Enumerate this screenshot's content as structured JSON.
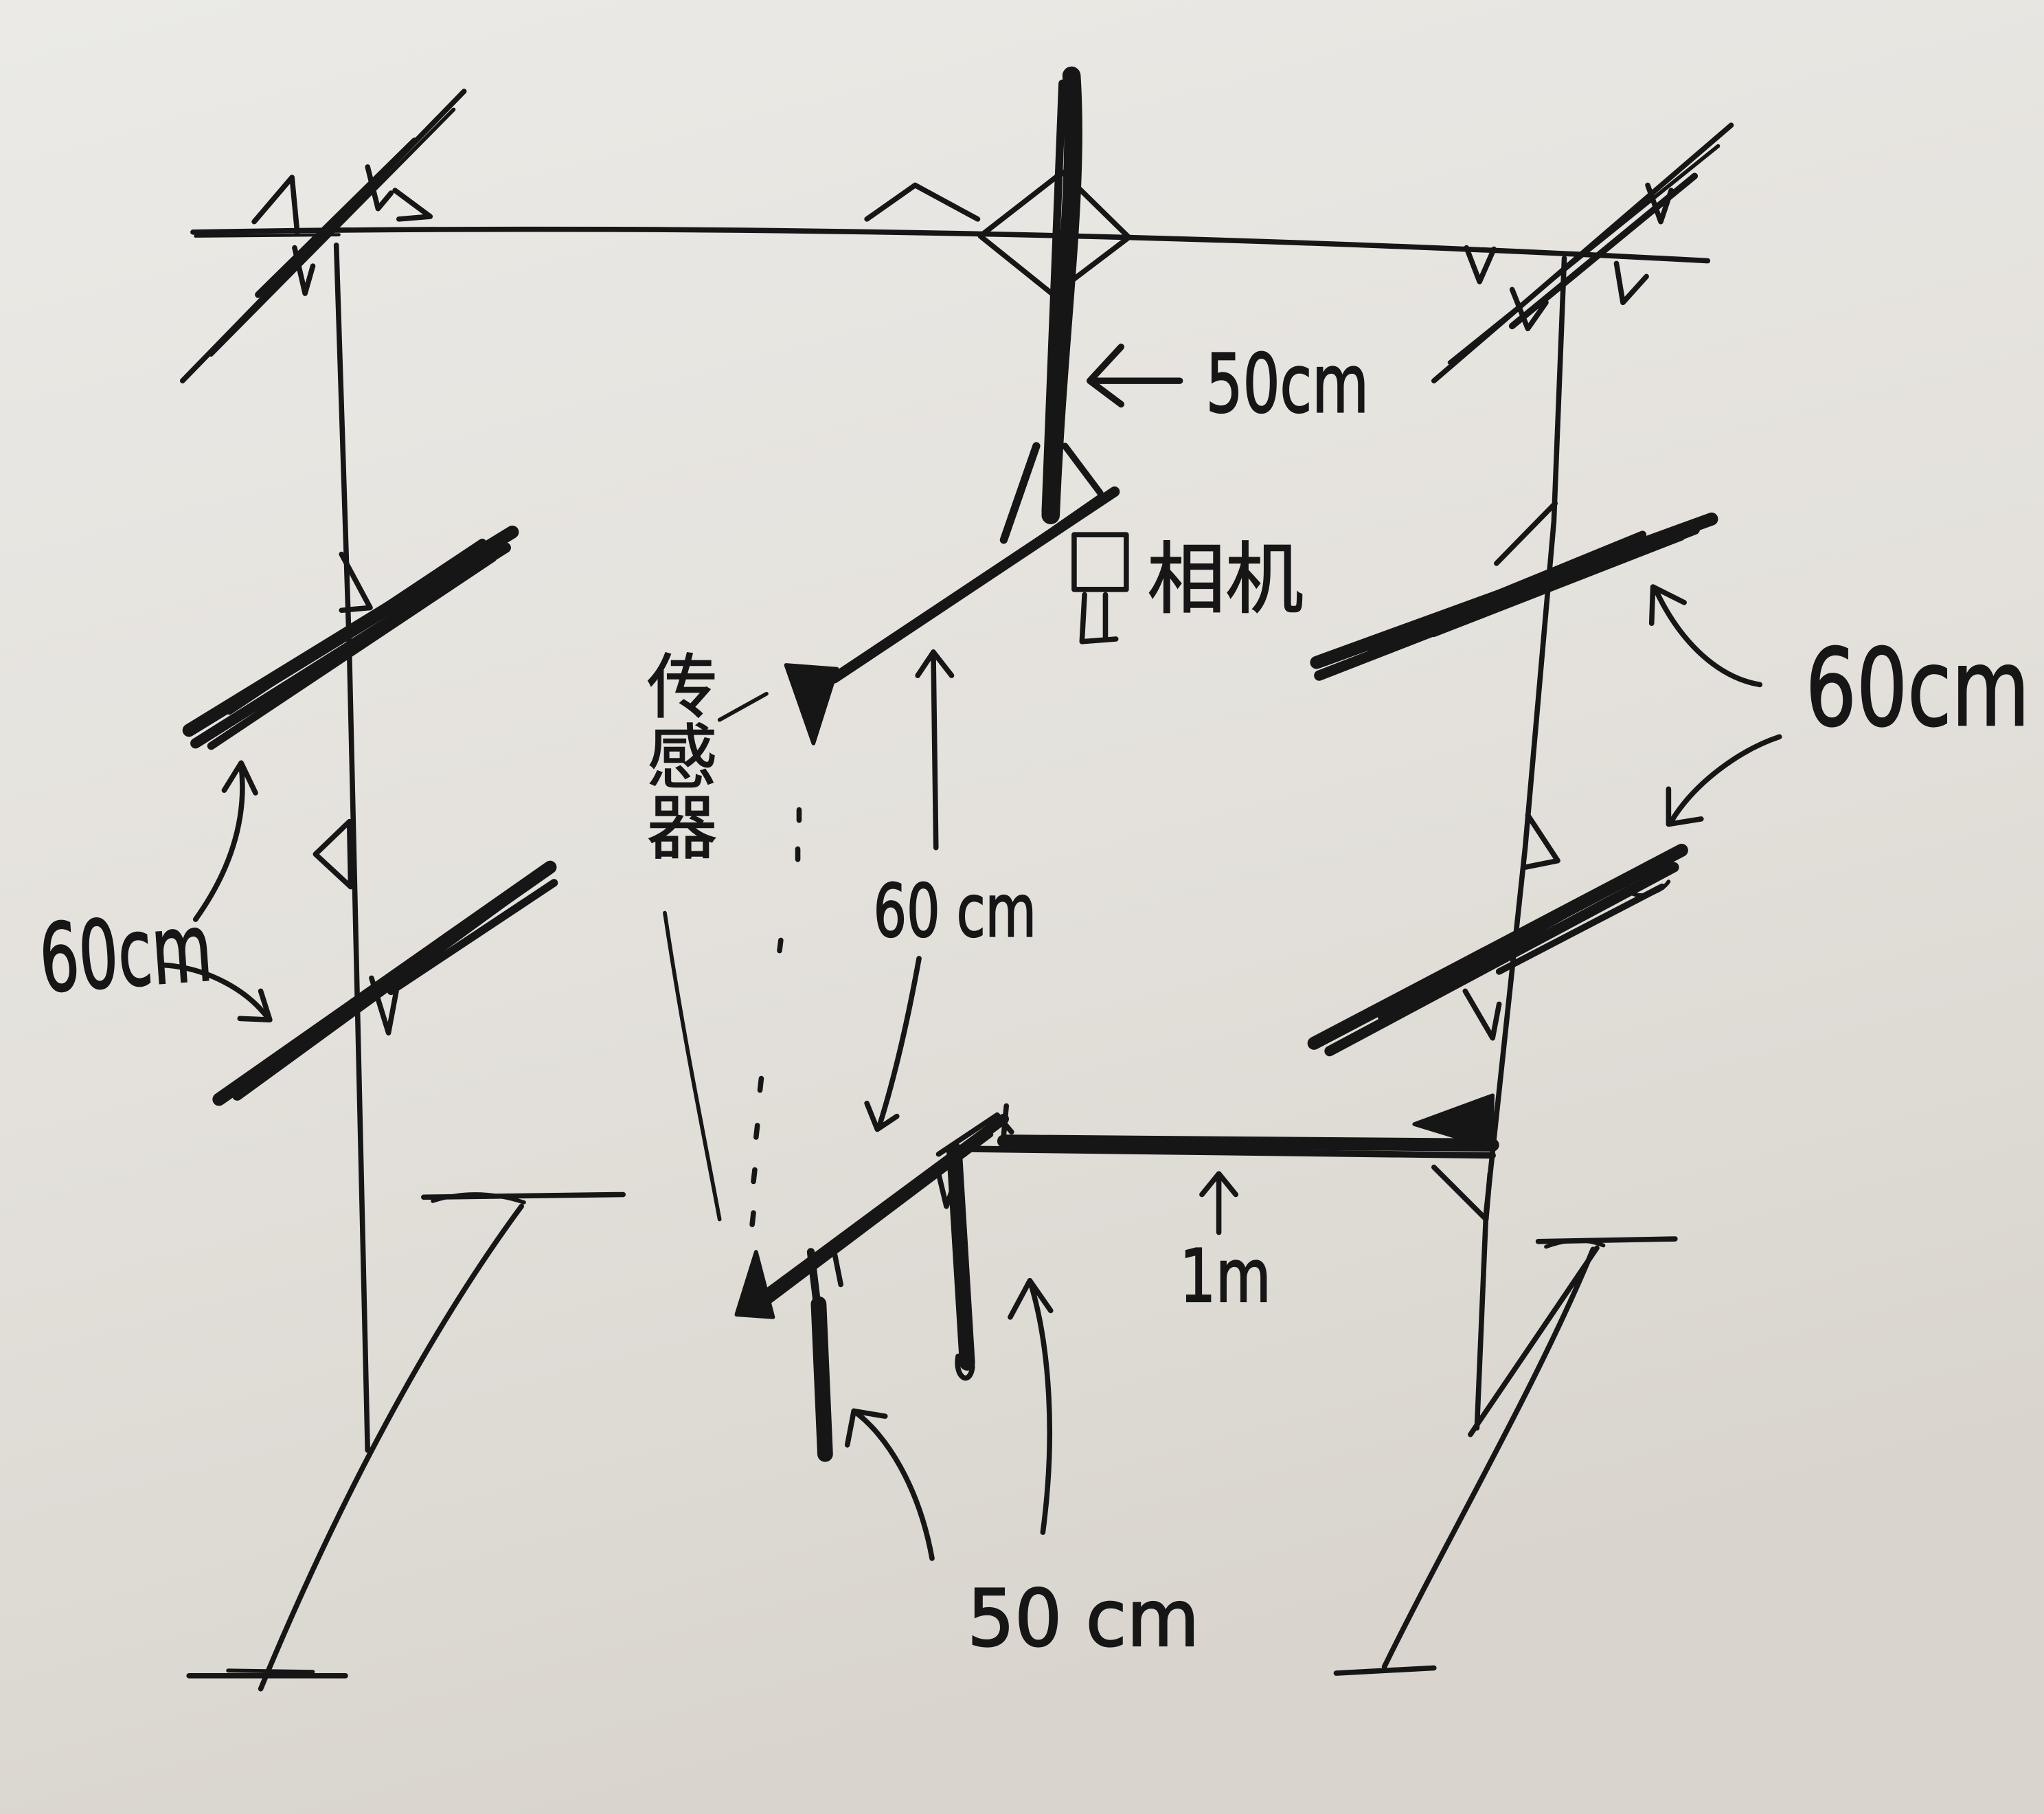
{
  "colors": {
    "ink": "#161616",
    "board": "#e6e4df"
  },
  "labels": {
    "center_post_height": "50cm",
    "camera": "相机",
    "sensor": "传感器",
    "right_arm_spacing": "60cm",
    "left_arm_spacing": "60cm",
    "sensor_height": "60 cm",
    "table_length": "1m",
    "table_leg_height": "50 cm"
  }
}
